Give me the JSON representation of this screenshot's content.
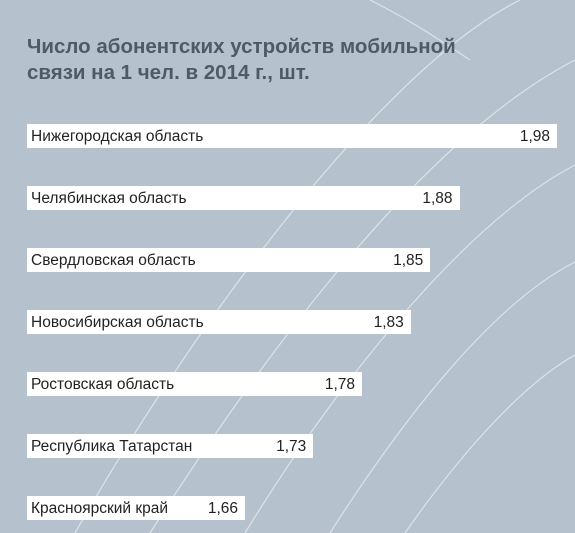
{
  "chart_data": {
    "type": "bar",
    "orientation": "horizontal",
    "title": "Число абонентских устройств мобильной связи на 1 чел. в 2014 г., шт.",
    "title_lines": [
      "Число абонентских устройств мобильной",
      "связи на 1 чел. в 2014 г., шт."
    ],
    "categories": [
      "Нижегородская область",
      "Челябинская область",
      "Свердловская область",
      "Новосибирская область",
      "Ростовская область",
      "Республика Татарстан",
      "Красноярский край"
    ],
    "values": [
      1.98,
      1.88,
      1.85,
      1.83,
      1.78,
      1.73,
      1.66
    ],
    "value_labels": [
      "1,98",
      "1,88",
      "1,85",
      "1,83",
      "1,78",
      "1,73",
      "1,66"
    ],
    "xlabel": "",
    "ylabel": "",
    "grid": false,
    "legend": "none",
    "bar_color": "#ffffff",
    "background_color": "#b5c2cd",
    "title_color": "#4e5a66"
  }
}
